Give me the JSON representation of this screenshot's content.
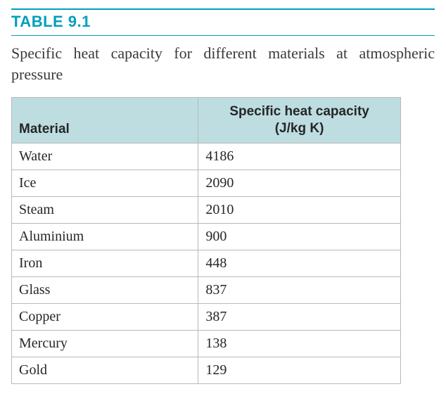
{
  "colors": {
    "accent": "#009fbd",
    "header_bg": "#bddde1",
    "row_border": "#b9b9b9",
    "text": "#262626",
    "caption_text": "#3a3a3a"
  },
  "table_label": "TABLE 9.1",
  "caption": "Specific heat capacity for different materials at atmospheric pressure",
  "columns": [
    "Material",
    "Specific heat capacity\n(J/kg K)"
  ],
  "rows": [
    {
      "material": "Water",
      "value": "4186"
    },
    {
      "material": "Ice",
      "value": "2090"
    },
    {
      "material": "Steam",
      "value": "2010"
    },
    {
      "material": "Aluminium",
      "value": "900"
    },
    {
      "material": "Iron",
      "value": "448"
    },
    {
      "material": "Glass",
      "value": "837"
    },
    {
      "material": "Copper",
      "value": "387"
    },
    {
      "material": "Mercury",
      "value": "138"
    },
    {
      "material": "Gold",
      "value": "129"
    }
  ],
  "style": {
    "label_fontsize": 22,
    "caption_fontsize": 22,
    "body_fontsize": 20,
    "header_fontsize": 19,
    "col_widths_pct": [
      48,
      52
    ],
    "value_align": "center-right"
  }
}
